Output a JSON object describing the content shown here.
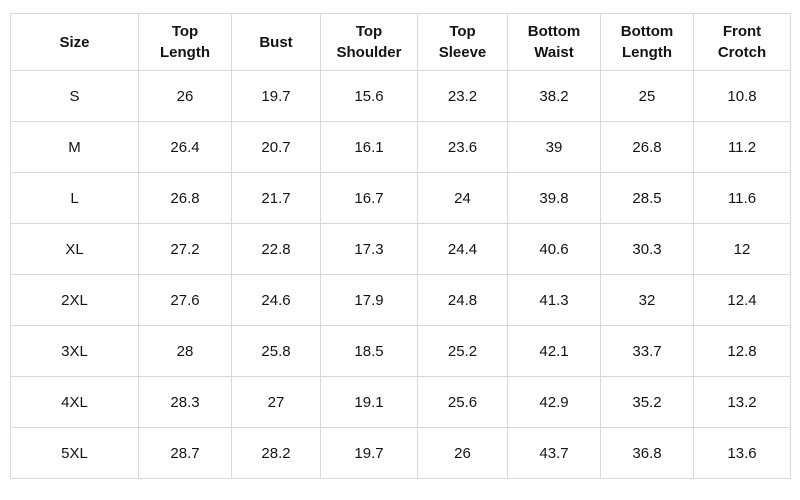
{
  "colors": {
    "background": "#ffffff",
    "border": "#d9d9d9",
    "text": "#141414"
  },
  "chart_data": {
    "type": "table",
    "columns": [
      "Size",
      "Top Length",
      "Bust",
      "Top Shoulder",
      "Top Sleeve",
      "Bottom Waist",
      "Bottom Length",
      "Front Crotch"
    ],
    "rows": [
      [
        "S",
        26,
        19.7,
        15.6,
        23.2,
        38.2,
        25,
        10.8
      ],
      [
        "M",
        26.4,
        20.7,
        16.1,
        23.6,
        39,
        26.8,
        11.2
      ],
      [
        "L",
        26.8,
        21.7,
        16.7,
        24,
        39.8,
        28.5,
        11.6
      ],
      [
        "XL",
        27.2,
        22.8,
        17.3,
        24.4,
        40.6,
        30.3,
        12
      ],
      [
        "2XL",
        27.6,
        24.6,
        17.9,
        24.8,
        41.3,
        32,
        12.4
      ],
      [
        "3XL",
        28,
        25.8,
        18.5,
        25.2,
        42.1,
        33.7,
        12.8
      ],
      [
        "4XL",
        28.3,
        27,
        19.1,
        25.6,
        42.9,
        35.2,
        13.2
      ],
      [
        "5XL",
        28.7,
        28.2,
        19.7,
        26,
        43.7,
        36.8,
        13.6
      ]
    ]
  }
}
